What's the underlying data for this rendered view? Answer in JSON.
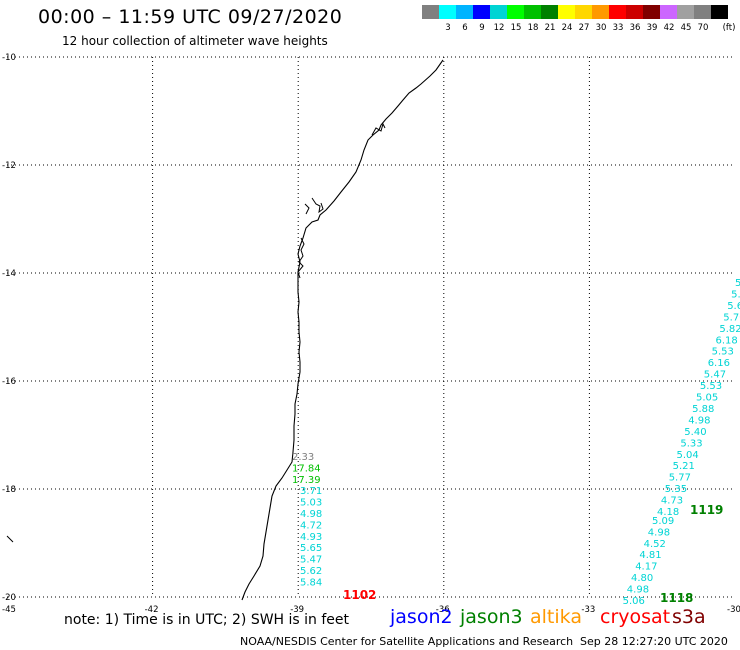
{
  "header": {
    "title": "00:00 – 11:59 UTC 09/27/2020",
    "subtitle": "12 hour collection of altimeter wave heights"
  },
  "color_scale": {
    "unit": "(ft)",
    "swatches": [
      {
        "color": "#808080",
        "label": ""
      },
      {
        "color": "#00ffff",
        "label": "3"
      },
      {
        "color": "#00b4ff",
        "label": "6"
      },
      {
        "color": "#0000ff",
        "label": "9"
      },
      {
        "color": "#00d4d4",
        "label": "12"
      },
      {
        "color": "#00ff00",
        "label": "15"
      },
      {
        "color": "#00c000",
        "label": "18"
      },
      {
        "color": "#008000",
        "label": "21"
      },
      {
        "color": "#ffff00",
        "label": "24"
      },
      {
        "color": "#ffd700",
        "label": "27"
      },
      {
        "color": "#ff9900",
        "label": "30"
      },
      {
        "color": "#ff0000",
        "label": "33"
      },
      {
        "color": "#cc0000",
        "label": "36"
      },
      {
        "color": "#800000",
        "label": "39"
      },
      {
        "color": "#cc66ff",
        "label": "42"
      },
      {
        "color": "#a0a0a0",
        "label": "45"
      },
      {
        "color": "#808080",
        "label": "70"
      },
      {
        "color": "#000000",
        "label": ""
      }
    ]
  },
  "map": {
    "lat_labels": [
      "-10",
      "-12",
      "-14",
      "-16",
      "-18",
      "-20"
    ],
    "lon_labels": [
      "-45",
      "-42",
      "-39",
      "-36",
      "-33",
      "-30"
    ],
    "lat_range": [
      -20,
      -10
    ],
    "lon_range": [
      -45,
      -30
    ],
    "grid": "dotted"
  },
  "tracks": {
    "west": {
      "values": [
        {
          "v": "2.33",
          "color": "#808080"
        },
        {
          "v": "17.84",
          "color": "#00c000"
        },
        {
          "v": "17.39",
          "color": "#00c000"
        },
        {
          "v": "3.71",
          "color": "#00d4d4"
        },
        {
          "v": "5.03",
          "color": "#00d4d4"
        },
        {
          "v": "4.98",
          "color": "#00d4d4"
        },
        {
          "v": "4.72",
          "color": "#00d4d4"
        },
        {
          "v": "4.93",
          "color": "#00d4d4"
        },
        {
          "v": "5.65",
          "color": "#00d4d4"
        },
        {
          "v": "5.47",
          "color": "#00d4d4"
        },
        {
          "v": "5.62",
          "color": "#00d4d4"
        },
        {
          "v": "5.84",
          "color": "#00d4d4"
        }
      ],
      "time_label": "1102",
      "time_color": "#ff0000"
    },
    "east_upper": {
      "values": [
        "5.",
        "5.",
        "5.6",
        "5.70",
        "5.82",
        "6.18",
        "5.53",
        "6.16",
        "5.47",
        "5.53",
        "5.05",
        "5.88",
        "4.98",
        "5.40",
        "5.33",
        "5.04",
        "5.21",
        "5.77",
        "5.35",
        "4.73",
        "4.18"
      ],
      "color": "#00d4d4",
      "time_label": "1119",
      "time_color": "#008000"
    },
    "east_lower": {
      "values": [
        "5.09",
        "4.98",
        "4.52",
        "4.81",
        "4.17",
        "4.80",
        "4.98",
        "5.06"
      ],
      "color": "#00d4d4",
      "time_label": "1118",
      "time_color": "#008000"
    }
  },
  "footer": {
    "note": "note: 1) Time is in UTC; 2) SWH is in feet",
    "satellites": [
      {
        "name": "jason2",
        "color": "#0000ff"
      },
      {
        "name": "jason3",
        "color": "#008000"
      },
      {
        "name": "altika",
        "color": "#ff9900"
      },
      {
        "name": "cryosat",
        "color": "#ff0000"
      },
      {
        "name": "s3a",
        "color": "#800000"
      }
    ],
    "credit": "NOAA/NESDIS Center for Satellite Applications and Research",
    "timestamp": "Sep 28 12:27:20 UTC 2020"
  }
}
